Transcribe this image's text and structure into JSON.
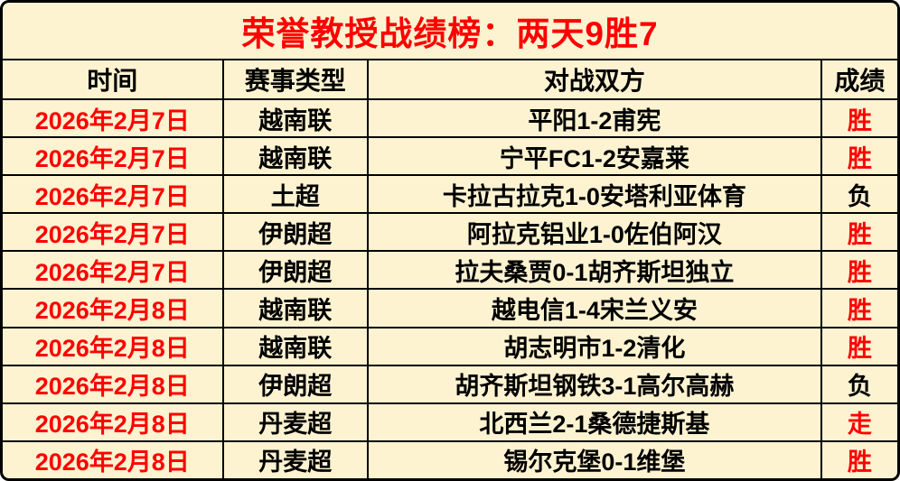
{
  "title": "荣誉教授战绩榜：两天9胜7",
  "colors": {
    "background": "#fdf3d1",
    "accent_red": "#ff0000",
    "text_black": "#000000",
    "border": "#000000"
  },
  "table": {
    "headers": [
      "时间",
      "赛事类型",
      "对战双方",
      "成绩"
    ],
    "rows": [
      {
        "date": "2026年2月7日",
        "league": "越南联",
        "match": "平阳1-2甫宪",
        "result": "胜",
        "result_style": "color:#ff0000"
      },
      {
        "date": "2026年2月7日",
        "league": "越南联",
        "match": "宁平FC1-2安嘉莱",
        "result": "胜",
        "result_style": "color:#ff0000"
      },
      {
        "date": "2026年2月7日",
        "league": "土超",
        "match": "卡拉古拉克1-0安塔利亚体育",
        "result": "负",
        "result_style": "color:#000000"
      },
      {
        "date": "2026年2月7日",
        "league": "伊朗超",
        "match": "阿拉克铝业1-0佐伯阿汉",
        "result": "胜",
        "result_style": "color:#ff0000"
      },
      {
        "date": "2026年2月7日",
        "league": "伊朗超",
        "match": "拉夫桑贾0-1胡齐斯坦独立",
        "result": "胜",
        "result_style": "color:#ff0000"
      },
      {
        "date": "2026年2月8日",
        "league": "越南联",
        "match": "越电信1-4宋兰义安",
        "result": "胜",
        "result_style": "color:#ff0000"
      },
      {
        "date": "2026年2月8日",
        "league": "越南联",
        "match": "胡志明市1-2清化",
        "result": "胜",
        "result_style": "color:#ff0000"
      },
      {
        "date": "2026年2月8日",
        "league": "伊朗超",
        "match": "胡齐斯坦钢铁3-1高尔高赫",
        "result": "负",
        "result_style": "color:#000000"
      },
      {
        "date": "2026年2月8日",
        "league": "丹麦超",
        "match": "北西兰2-1桑德捷斯基",
        "result": "走",
        "result_style": "color:#ff0000"
      },
      {
        "date": "2026年2月8日",
        "league": "丹麦超",
        "match": "锡尔克堡0-1维堡",
        "result": "胜",
        "result_style": "color:#ff0000"
      }
    ]
  }
}
